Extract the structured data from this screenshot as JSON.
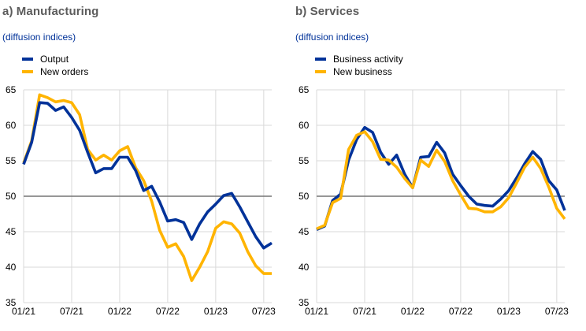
{
  "chart_data": [
    {
      "type": "line",
      "panel_id": "manufacturing",
      "title": "a) Manufacturing",
      "subtitle": "(diffusion indices)",
      "xlabel": "",
      "ylabel": "",
      "ylim": [
        35,
        65
      ],
      "yticks": [
        35,
        40,
        45,
        50,
        55,
        60,
        65
      ],
      "reference_line": 50,
      "grid": true,
      "legend_position": "top-left",
      "x": [
        "01/21",
        "02/21",
        "03/21",
        "04/21",
        "05/21",
        "06/21",
        "07/21",
        "08/21",
        "09/21",
        "10/21",
        "11/21",
        "12/21",
        "01/22",
        "02/22",
        "03/22",
        "04/22",
        "05/22",
        "06/22",
        "07/22",
        "08/22",
        "09/22",
        "10/22",
        "11/22",
        "12/22",
        "01/23",
        "02/23",
        "03/23",
        "04/23",
        "05/23",
        "06/23",
        "07/23",
        "08/23"
      ],
      "xticks": [
        "01/21",
        "07/21",
        "01/22",
        "07/22",
        "01/23",
        "07/23"
      ],
      "series": [
        {
          "name": "Output",
          "color": "#003299",
          "values": [
            54.5,
            57.6,
            63.2,
            63.1,
            62.1,
            62.6,
            61.1,
            59.3,
            56.2,
            53.3,
            53.9,
            53.9,
            55.5,
            55.5,
            53.6,
            50.8,
            51.4,
            49.2,
            46.5,
            46.7,
            46.3,
            43.9,
            46.1,
            47.8,
            48.9,
            50.1,
            50.4,
            48.5,
            46.4,
            44.3,
            42.7,
            43.4
          ]
        },
        {
          "name": "New orders",
          "color": "#FFB400",
          "values": [
            54.7,
            57.8,
            64.3,
            63.9,
            63.3,
            63.5,
            63.2,
            61.5,
            56.6,
            55.1,
            55.8,
            55.1,
            56.4,
            57.0,
            54.0,
            52.2,
            49.3,
            45.2,
            42.8,
            43.3,
            41.5,
            38.1,
            40.0,
            42.2,
            45.5,
            46.4,
            46.1,
            44.8,
            42.2,
            40.2,
            39.1,
            39.1
          ]
        }
      ]
    },
    {
      "type": "line",
      "panel_id": "services",
      "title": "b) Services",
      "subtitle": "(diffusion indices)",
      "xlabel": "",
      "ylabel": "",
      "ylim": [
        35,
        65
      ],
      "yticks": [
        35,
        40,
        45,
        50,
        55,
        60,
        65
      ],
      "reference_line": 50,
      "grid": true,
      "legend_position": "top-left",
      "x": [
        "01/21",
        "02/21",
        "03/21",
        "04/21",
        "05/21",
        "06/21",
        "07/21",
        "08/21",
        "09/21",
        "10/21",
        "11/21",
        "12/21",
        "01/22",
        "02/22",
        "03/22",
        "04/22",
        "05/22",
        "06/22",
        "07/22",
        "08/22",
        "09/22",
        "10/22",
        "11/22",
        "12/22",
        "01/23",
        "02/23",
        "03/23",
        "04/23",
        "05/23",
        "06/23",
        "07/23",
        "08/23"
      ],
      "xticks": [
        "01/21",
        "07/21",
        "01/22",
        "07/22",
        "01/23",
        "07/23"
      ],
      "series": [
        {
          "name": "Business activity",
          "color": "#003299",
          "values": [
            45.3,
            45.8,
            49.4,
            50.3,
            55.1,
            58.0,
            59.7,
            59.0,
            56.2,
            54.5,
            55.8,
            53.1,
            51.2,
            55.5,
            55.6,
            57.6,
            56.1,
            53.1,
            51.5,
            50.0,
            48.9,
            48.7,
            48.6,
            49.6,
            50.8,
            52.6,
            54.6,
            56.3,
            55.2,
            52.2,
            50.9,
            48.0
          ]
        },
        {
          "name": "New business",
          "color": "#FFB400",
          "values": [
            45.4,
            45.9,
            49.1,
            49.7,
            56.6,
            58.6,
            59.1,
            57.7,
            55.2,
            55.1,
            54.1,
            52.5,
            51.2,
            55.1,
            54.2,
            56.5,
            54.9,
            52.2,
            50.2,
            48.3,
            48.2,
            47.8,
            47.8,
            48.5,
            49.8,
            51.9,
            54.1,
            55.5,
            53.9,
            51.3,
            48.3,
            46.8
          ]
        }
      ]
    }
  ],
  "colors": {
    "title": "#5c5c5c",
    "subtitle": "#003299",
    "grid": "#d9d9d9",
    "reference_line": "#757575"
  }
}
